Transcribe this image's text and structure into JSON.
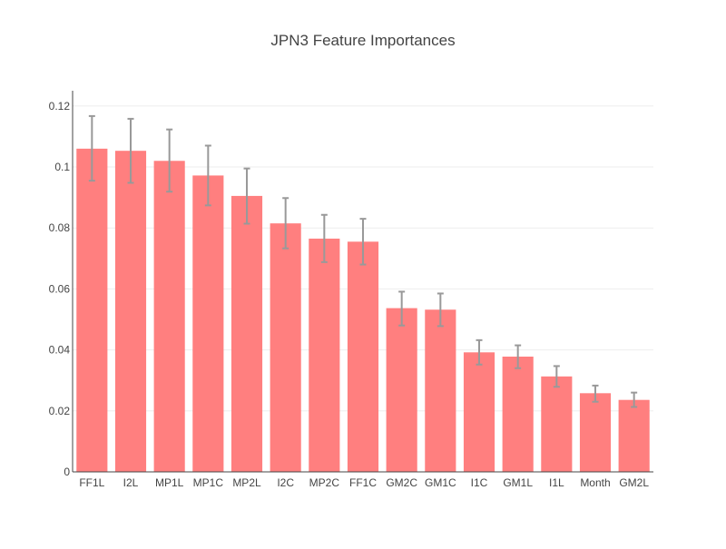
{
  "chart_data": {
    "type": "bar",
    "title": "JPN3 Feature Importances",
    "xlabel": "",
    "ylabel": "",
    "categories": [
      "FF1L",
      "I2L",
      "MP1L",
      "MP1C",
      "MP2L",
      "I2C",
      "MP2C",
      "FF1C",
      "GM2C",
      "GM1C",
      "I1C",
      "GM1L",
      "I1L",
      "Month",
      "GM2L"
    ],
    "values": [
      0.106,
      0.1053,
      0.102,
      0.0972,
      0.0905,
      0.0815,
      0.0765,
      0.0755,
      0.0537,
      0.0532,
      0.0392,
      0.0378,
      0.0313,
      0.0258,
      0.0236
    ],
    "error_minus": [
      0.0105,
      0.0105,
      0.0101,
      0.0098,
      0.0091,
      0.0082,
      0.0077,
      0.0075,
      0.0057,
      0.0054,
      0.004,
      0.0038,
      0.0034,
      0.0028,
      0.0023
    ],
    "error_plus": [
      0.0107,
      0.0105,
      0.0103,
      0.0098,
      0.009,
      0.0083,
      0.0078,
      0.0075,
      0.0054,
      0.0053,
      0.004,
      0.0037,
      0.0034,
      0.0025,
      0.0024
    ],
    "ylim": [
      0,
      0.125
    ],
    "yticks": [
      0,
      0.02,
      0.04,
      0.06,
      0.08,
      0.1,
      0.12
    ],
    "ytick_labels": [
      "0",
      "0.02",
      "0.04",
      "0.06",
      "0.08",
      "0.1",
      "0.12"
    ],
    "grid": true,
    "legend": "none",
    "colors": {
      "bar": "#FF7F7F",
      "error_bar": "#999999",
      "grid": "#eeeeee",
      "axis_line": "#444444",
      "text": "#444444"
    }
  }
}
